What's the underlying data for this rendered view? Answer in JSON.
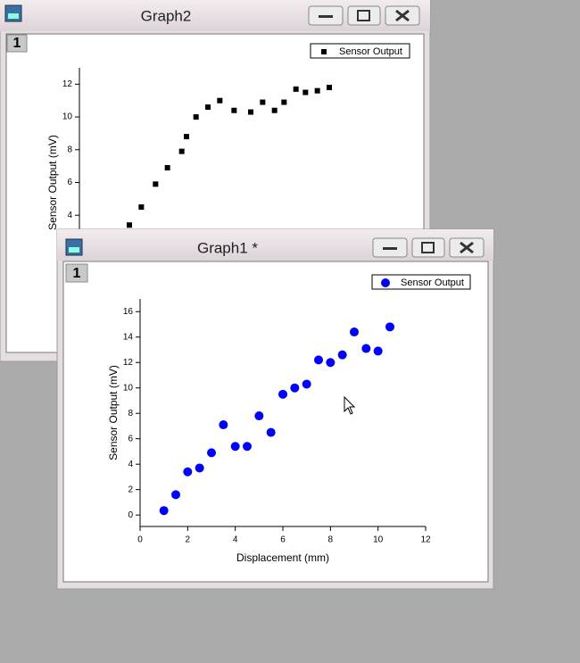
{
  "windows": [
    {
      "title": "Graph2",
      "layer": "1"
    },
    {
      "title": "Graph1 *",
      "layer": "1"
    }
  ],
  "chart_data": [
    {
      "type": "scatter",
      "ylabel": "Sensor Output (mV)",
      "xlim": [
        0,
        12
      ],
      "ylim": [
        -1,
        13
      ],
      "yticks": [
        4,
        6,
        8,
        10,
        12
      ],
      "series": [
        {
          "name": "Sensor Output",
          "color": "#000000",
          "marker": "square",
          "x": [
            2.1,
            2.6,
            3.2,
            3.7,
            4.3,
            4.5,
            4.9,
            5.4,
            5.9,
            6.5,
            7.2,
            7.7,
            8.2,
            8.6,
            9.1,
            9.5,
            10.0,
            10.5
          ],
          "values": [
            3.4,
            4.5,
            5.9,
            6.9,
            7.9,
            8.8,
            10.0,
            10.6,
            11.0,
            10.4,
            10.3,
            10.9,
            10.4,
            10.9,
            11.7,
            11.5,
            11.6,
            11.8
          ]
        }
      ]
    },
    {
      "type": "scatter",
      "xlabel": "Displacement (mm)",
      "ylabel": "Sensor Output (mV)",
      "xlim": [
        0,
        12
      ],
      "ylim": [
        -0.9,
        17
      ],
      "xticks": [
        0,
        2,
        4,
        6,
        8,
        10,
        12
      ],
      "yticks": [
        0,
        2,
        4,
        6,
        8,
        10,
        12,
        14,
        16
      ],
      "series": [
        {
          "name": "Sensor Output",
          "color": "#0000ff",
          "marker": "circle",
          "x": [
            1,
            1.5,
            2,
            2.5,
            3,
            3.5,
            4,
            4.5,
            5,
            5.5,
            6,
            6.5,
            7,
            7.5,
            8,
            8.5,
            9,
            9.5,
            10,
            10.5
          ],
          "values": [
            0.35,
            1.6,
            3.4,
            3.7,
            4.9,
            7.1,
            5.4,
            5.4,
            7.8,
            6.5,
            9.5,
            10.0,
            10.3,
            12.2,
            12.0,
            12.6,
            14.4,
            13.1,
            12.9,
            14.8
          ]
        }
      ]
    }
  ]
}
